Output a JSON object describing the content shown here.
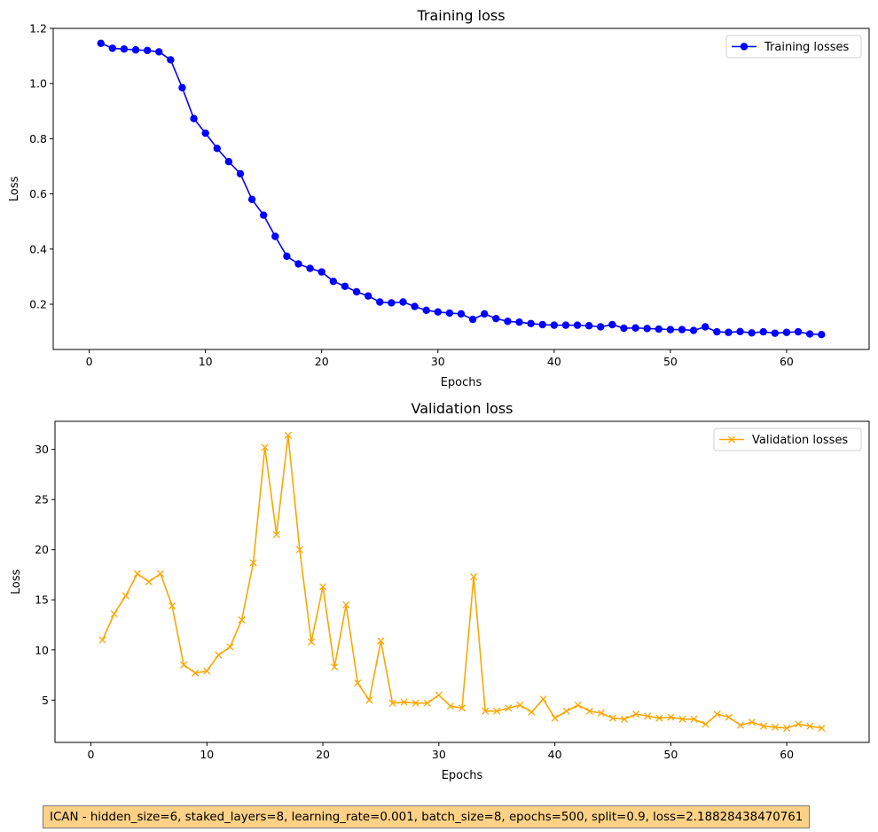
{
  "chart_data": [
    {
      "type": "line",
      "title": "Training loss",
      "xlabel": "Epochs",
      "ylabel": "Loss",
      "xlim": [
        -3.1,
        67.1
      ],
      "ylim": [
        0.036,
        1.2
      ],
      "xticks": [
        0,
        10,
        20,
        30,
        40,
        50,
        60
      ],
      "yticks": [
        0.2,
        0.4,
        0.6,
        0.8,
        1.0,
        1.2
      ],
      "ytick_decimals": 1,
      "grid": false,
      "legend": "top-right",
      "series": [
        {
          "name": "Training losses",
          "color": "#0000ff",
          "marker": "circle",
          "x": [
            1,
            2,
            3,
            4,
            5,
            6,
            7,
            8,
            9,
            10,
            11,
            12,
            13,
            14,
            15,
            16,
            17,
            18,
            19,
            20,
            21,
            22,
            23,
            24,
            25,
            26,
            27,
            28,
            29,
            30,
            31,
            32,
            33,
            34,
            35,
            36,
            37,
            38,
            39,
            40,
            41,
            42,
            43,
            44,
            45,
            46,
            47,
            48,
            49,
            50,
            51,
            52,
            53,
            54,
            55,
            56,
            57,
            58,
            59,
            60,
            61,
            62,
            63
          ],
          "y": [
            1.146,
            1.128,
            1.125,
            1.122,
            1.12,
            1.115,
            1.086,
            0.985,
            0.873,
            0.82,
            0.765,
            0.717,
            0.673,
            0.58,
            0.523,
            0.446,
            0.374,
            0.346,
            0.33,
            0.317,
            0.283,
            0.265,
            0.245,
            0.23,
            0.208,
            0.205,
            0.208,
            0.192,
            0.178,
            0.172,
            0.168,
            0.165,
            0.145,
            0.165,
            0.148,
            0.138,
            0.135,
            0.13,
            0.126,
            0.124,
            0.124,
            0.124,
            0.122,
            0.118,
            0.126,
            0.113,
            0.114,
            0.112,
            0.11,
            0.108,
            0.108,
            0.105,
            0.118,
            0.1,
            0.098,
            0.101,
            0.096,
            0.1,
            0.095,
            0.098,
            0.1,
            0.092,
            0.09
          ]
        }
      ]
    },
    {
      "type": "line",
      "title": "Validation loss",
      "xlabel": "Epochs",
      "ylabel": "Loss",
      "xlim": [
        -3.1,
        67.1
      ],
      "ylim": [
        0.78,
        32.8
      ],
      "xticks": [
        0,
        10,
        20,
        30,
        40,
        50,
        60
      ],
      "yticks": [
        5,
        10,
        15,
        20,
        25,
        30
      ],
      "ytick_decimals": 0,
      "grid": false,
      "legend": "top-right",
      "series": [
        {
          "name": "Validation losses",
          "color": "#ffa500",
          "marker": "x",
          "x": [
            1,
            2,
            3,
            4,
            5,
            6,
            7,
            8,
            9,
            10,
            11,
            12,
            13,
            14,
            15,
            16,
            17,
            18,
            19,
            20,
            21,
            22,
            23,
            24,
            25,
            26,
            27,
            28,
            29,
            30,
            31,
            32,
            33,
            34,
            35,
            36,
            37,
            38,
            39,
            40,
            41,
            42,
            43,
            44,
            45,
            46,
            47,
            48,
            49,
            50,
            51,
            52,
            53,
            54,
            55,
            56,
            57,
            58,
            59,
            60,
            61,
            62,
            63
          ],
          "y": [
            11.0,
            13.6,
            15.4,
            17.6,
            16.8,
            17.6,
            14.4,
            8.5,
            7.7,
            7.9,
            9.5,
            10.3,
            13.0,
            18.7,
            30.2,
            21.5,
            31.4,
            20.0,
            10.8,
            16.3,
            8.3,
            14.5,
            6.7,
            5.0,
            10.9,
            4.7,
            4.8,
            4.7,
            4.7,
            5.5,
            4.4,
            4.2,
            17.3,
            3.9,
            3.9,
            4.2,
            4.5,
            3.8,
            5.1,
            3.2,
            3.9,
            4.5,
            3.9,
            3.7,
            3.2,
            3.1,
            3.6,
            3.4,
            3.2,
            3.3,
            3.1,
            3.1,
            2.6,
            3.6,
            3.3,
            2.5,
            2.8,
            2.4,
            2.3,
            2.2,
            2.6,
            2.4,
            2.2
          ]
        }
      ]
    }
  ],
  "caption": "ICAN - hidden_size=6, staked_layers=8, learning_rate=0.001, batch_size=8, epochs=500, split=0.9, loss=2.18828438470761"
}
